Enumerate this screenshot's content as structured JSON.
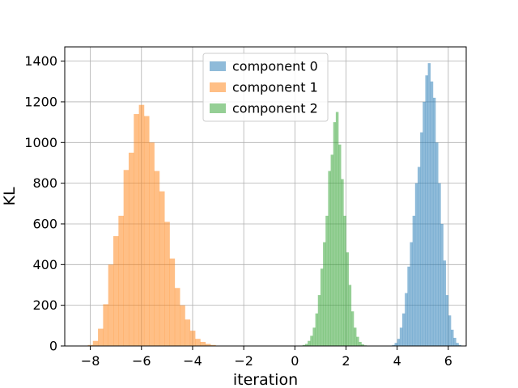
{
  "chart_data": {
    "type": "histogram",
    "xlabel": "iteration",
    "ylabel": "KL",
    "xlim": [
      -9.0,
      6.7
    ],
    "ylim": [
      0,
      1470
    ],
    "xticks": [
      -8,
      -6,
      -4,
      -2,
      0,
      2,
      4,
      6
    ],
    "xtick_labels": [
      "−8",
      "−6",
      "−4",
      "−2",
      "0",
      "2",
      "4",
      "6"
    ],
    "yticks": [
      0,
      200,
      400,
      600,
      800,
      1000,
      1200,
      1400
    ],
    "ytick_labels": [
      "0",
      "200",
      "400",
      "600",
      "800",
      "1000",
      "1200",
      "1400"
    ],
    "grid": true,
    "legend_position": "top-center",
    "series": [
      {
        "name": "component 0",
        "color": "#1f77b4",
        "alpha": 0.5,
        "bin_start": 3.8,
        "bin_width": 0.1,
        "counts": [
          5,
          15,
          35,
          90,
          160,
          260,
          390,
          510,
          640,
          800,
          880,
          1050,
          1200,
          1330,
          1390,
          1300,
          1220,
          1000,
          800,
          600,
          420,
          250,
          150,
          80,
          40,
          15,
          5
        ]
      },
      {
        "name": "component 1",
        "color": "#ff7f0e",
        "alpha": 0.5,
        "bin_start": -8.1,
        "bin_width": 0.2,
        "counts": [
          5,
          25,
          85,
          205,
          400,
          540,
          640,
          865,
          950,
          1140,
          1185,
          1130,
          1000,
          860,
          760,
          610,
          430,
          285,
          200,
          130,
          75,
          35,
          20,
          10,
          5
        ]
      },
      {
        "name": "component 2",
        "color": "#2ca02c",
        "alpha": 0.5,
        "bin_start": 0.3,
        "bin_width": 0.1,
        "counts": [
          5,
          10,
          25,
          50,
          90,
          160,
          250,
          380,
          510,
          640,
          860,
          940,
          1100,
          1150,
          990,
          820,
          640,
          460,
          300,
          170,
          90,
          45,
          20,
          8,
          3
        ]
      }
    ]
  }
}
